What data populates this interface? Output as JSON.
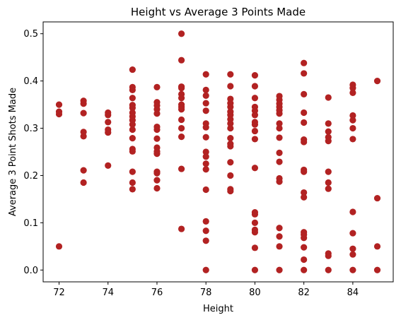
{
  "chart_data": {
    "type": "scatter",
    "title": "Height vs Average 3 Points Made",
    "xlabel": "Height",
    "ylabel": "Average 3 Point Shots Made",
    "xlim": [
      71.35,
      85.65
    ],
    "ylim": [
      -0.025,
      0.525
    ],
    "xticks": [
      72,
      74,
      76,
      78,
      80,
      82,
      84
    ],
    "xtick_labels": [
      "72",
      "74",
      "76",
      "78",
      "80",
      "82",
      "84"
    ],
    "yticks": [
      0.0,
      0.1,
      0.2,
      0.3,
      0.4,
      0.5
    ],
    "ytick_labels": [
      "0.0",
      "0.1",
      "0.2",
      "0.3",
      "0.4",
      "0.5"
    ],
    "grid": false,
    "marker_color": "#b22222",
    "points": [
      {
        "x": 72,
        "y": 0.35
      },
      {
        "x": 72,
        "y": 0.335
      },
      {
        "x": 72,
        "y": 0.33
      },
      {
        "x": 72,
        "y": 0.05
      },
      {
        "x": 73,
        "y": 0.358
      },
      {
        "x": 73,
        "y": 0.352
      },
      {
        "x": 73,
        "y": 0.332
      },
      {
        "x": 73,
        "y": 0.292
      },
      {
        "x": 73,
        "y": 0.283
      },
      {
        "x": 73,
        "y": 0.211
      },
      {
        "x": 73,
        "y": 0.185
      },
      {
        "x": 74,
        "y": 0.333
      },
      {
        "x": 74,
        "y": 0.328
      },
      {
        "x": 74,
        "y": 0.313
      },
      {
        "x": 74,
        "y": 0.297
      },
      {
        "x": 74,
        "y": 0.291
      },
      {
        "x": 74,
        "y": 0.221
      },
      {
        "x": 75,
        "y": 0.424
      },
      {
        "x": 75,
        "y": 0.387
      },
      {
        "x": 75,
        "y": 0.381
      },
      {
        "x": 75,
        "y": 0.364
      },
      {
        "x": 75,
        "y": 0.349
      },
      {
        "x": 75,
        "y": 0.343
      },
      {
        "x": 75,
        "y": 0.333
      },
      {
        "x": 75,
        "y": 0.325
      },
      {
        "x": 75,
        "y": 0.317
      },
      {
        "x": 75,
        "y": 0.308
      },
      {
        "x": 75,
        "y": 0.297
      },
      {
        "x": 75,
        "y": 0.279
      },
      {
        "x": 75,
        "y": 0.256
      },
      {
        "x": 75,
        "y": 0.251
      },
      {
        "x": 75,
        "y": 0.208
      },
      {
        "x": 75,
        "y": 0.185
      },
      {
        "x": 75,
        "y": 0.171
      },
      {
        "x": 76,
        "y": 0.387
      },
      {
        "x": 76,
        "y": 0.355
      },
      {
        "x": 76,
        "y": 0.348
      },
      {
        "x": 76,
        "y": 0.34
      },
      {
        "x": 76,
        "y": 0.331
      },
      {
        "x": 76,
        "y": 0.303
      },
      {
        "x": 76,
        "y": 0.297
      },
      {
        "x": 76,
        "y": 0.278
      },
      {
        "x": 76,
        "y": 0.259
      },
      {
        "x": 76,
        "y": 0.251
      },
      {
        "x": 76,
        "y": 0.246
      },
      {
        "x": 76,
        "y": 0.208
      },
      {
        "x": 76,
        "y": 0.205
      },
      {
        "x": 76,
        "y": 0.19
      },
      {
        "x": 76,
        "y": 0.173
      },
      {
        "x": 77,
        "y": 0.5
      },
      {
        "x": 77,
        "y": 0.444
      },
      {
        "x": 77,
        "y": 0.388
      },
      {
        "x": 77,
        "y": 0.385
      },
      {
        "x": 77,
        "y": 0.372
      },
      {
        "x": 77,
        "y": 0.364
      },
      {
        "x": 77,
        "y": 0.35
      },
      {
        "x": 77,
        "y": 0.345
      },
      {
        "x": 77,
        "y": 0.34
      },
      {
        "x": 77,
        "y": 0.318
      },
      {
        "x": 77,
        "y": 0.3
      },
      {
        "x": 77,
        "y": 0.282
      },
      {
        "x": 77,
        "y": 0.214
      },
      {
        "x": 77,
        "y": 0.087
      },
      {
        "x": 78,
        "y": 0.414
      },
      {
        "x": 78,
        "y": 0.381
      },
      {
        "x": 78,
        "y": 0.369
      },
      {
        "x": 78,
        "y": 0.353
      },
      {
        "x": 78,
        "y": 0.337
      },
      {
        "x": 78,
        "y": 0.31
      },
      {
        "x": 78,
        "y": 0.302
      },
      {
        "x": 78,
        "y": 0.281
      },
      {
        "x": 78,
        "y": 0.25
      },
      {
        "x": 78,
        "y": 0.24
      },
      {
        "x": 78,
        "y": 0.225
      },
      {
        "x": 78,
        "y": 0.213
      },
      {
        "x": 78,
        "y": 0.17
      },
      {
        "x": 78,
        "y": 0.103
      },
      {
        "x": 78,
        "y": 0.083
      },
      {
        "x": 78,
        "y": 0.062
      },
      {
        "x": 78,
        "y": 0.0
      },
      {
        "x": 79,
        "y": 0.414
      },
      {
        "x": 79,
        "y": 0.389
      },
      {
        "x": 79,
        "y": 0.362
      },
      {
        "x": 79,
        "y": 0.353
      },
      {
        "x": 79,
        "y": 0.345
      },
      {
        "x": 79,
        "y": 0.335
      },
      {
        "x": 79,
        "y": 0.328
      },
      {
        "x": 79,
        "y": 0.319
      },
      {
        "x": 79,
        "y": 0.31
      },
      {
        "x": 79,
        "y": 0.3
      },
      {
        "x": 79,
        "y": 0.279
      },
      {
        "x": 79,
        "y": 0.267
      },
      {
        "x": 79,
        "y": 0.262
      },
      {
        "x": 79,
        "y": 0.228
      },
      {
        "x": 79,
        "y": 0.2
      },
      {
        "x": 79,
        "y": 0.171
      },
      {
        "x": 79,
        "y": 0.167
      },
      {
        "x": 80,
        "y": 0.412
      },
      {
        "x": 80,
        "y": 0.389
      },
      {
        "x": 80,
        "y": 0.364
      },
      {
        "x": 80,
        "y": 0.345
      },
      {
        "x": 80,
        "y": 0.337
      },
      {
        "x": 80,
        "y": 0.328
      },
      {
        "x": 80,
        "y": 0.313
      },
      {
        "x": 80,
        "y": 0.308
      },
      {
        "x": 80,
        "y": 0.294
      },
      {
        "x": 80,
        "y": 0.277
      },
      {
        "x": 80,
        "y": 0.216
      },
      {
        "x": 80,
        "y": 0.122
      },
      {
        "x": 80,
        "y": 0.118
      },
      {
        "x": 80,
        "y": 0.1
      },
      {
        "x": 80,
        "y": 0.085
      },
      {
        "x": 80,
        "y": 0.08
      },
      {
        "x": 80,
        "y": 0.047
      },
      {
        "x": 80,
        "y": 0.0
      },
      {
        "x": 81,
        "y": 0.368
      },
      {
        "x": 81,
        "y": 0.36
      },
      {
        "x": 81,
        "y": 0.352
      },
      {
        "x": 81,
        "y": 0.345
      },
      {
        "x": 81,
        "y": 0.338
      },
      {
        "x": 81,
        "y": 0.331
      },
      {
        "x": 81,
        "y": 0.31
      },
      {
        "x": 81,
        "y": 0.3
      },
      {
        "x": 81,
        "y": 0.28
      },
      {
        "x": 81,
        "y": 0.248
      },
      {
        "x": 81,
        "y": 0.229
      },
      {
        "x": 81,
        "y": 0.194
      },
      {
        "x": 81,
        "y": 0.187
      },
      {
        "x": 81,
        "y": 0.089
      },
      {
        "x": 81,
        "y": 0.071
      },
      {
        "x": 81,
        "y": 0.05
      },
      {
        "x": 81,
        "y": 0.0
      },
      {
        "x": 82,
        "y": 0.438
      },
      {
        "x": 82,
        "y": 0.416
      },
      {
        "x": 82,
        "y": 0.372
      },
      {
        "x": 82,
        "y": 0.333
      },
      {
        "x": 82,
        "y": 0.312
      },
      {
        "x": 82,
        "y": 0.276
      },
      {
        "x": 82,
        "y": 0.271
      },
      {
        "x": 82,
        "y": 0.212
      },
      {
        "x": 82,
        "y": 0.208
      },
      {
        "x": 82,
        "y": 0.164
      },
      {
        "x": 82,
        "y": 0.154
      },
      {
        "x": 82,
        "y": 0.08
      },
      {
        "x": 82,
        "y": 0.075
      },
      {
        "x": 82,
        "y": 0.068
      },
      {
        "x": 82,
        "y": 0.048
      },
      {
        "x": 82,
        "y": 0.022
      },
      {
        "x": 82,
        "y": 0.0
      },
      {
        "x": 83,
        "y": 0.365
      },
      {
        "x": 83,
        "y": 0.31
      },
      {
        "x": 83,
        "y": 0.293
      },
      {
        "x": 83,
        "y": 0.281
      },
      {
        "x": 83,
        "y": 0.273
      },
      {
        "x": 83,
        "y": 0.208
      },
      {
        "x": 83,
        "y": 0.185
      },
      {
        "x": 83,
        "y": 0.172
      },
      {
        "x": 83,
        "y": 0.035
      },
      {
        "x": 83,
        "y": 0.03
      },
      {
        "x": 83,
        "y": 0.0
      },
      {
        "x": 84,
        "y": 0.392
      },
      {
        "x": 84,
        "y": 0.385
      },
      {
        "x": 84,
        "y": 0.375
      },
      {
        "x": 84,
        "y": 0.327
      },
      {
        "x": 84,
        "y": 0.317
      },
      {
        "x": 84,
        "y": 0.3
      },
      {
        "x": 84,
        "y": 0.277
      },
      {
        "x": 84,
        "y": 0.123
      },
      {
        "x": 84,
        "y": 0.078
      },
      {
        "x": 84,
        "y": 0.045
      },
      {
        "x": 84,
        "y": 0.033
      },
      {
        "x": 84,
        "y": 0.0
      },
      {
        "x": 85,
        "y": 0.4
      },
      {
        "x": 85,
        "y": 0.152
      },
      {
        "x": 85,
        "y": 0.05
      },
      {
        "x": 85,
        "y": 0.0
      }
    ]
  }
}
